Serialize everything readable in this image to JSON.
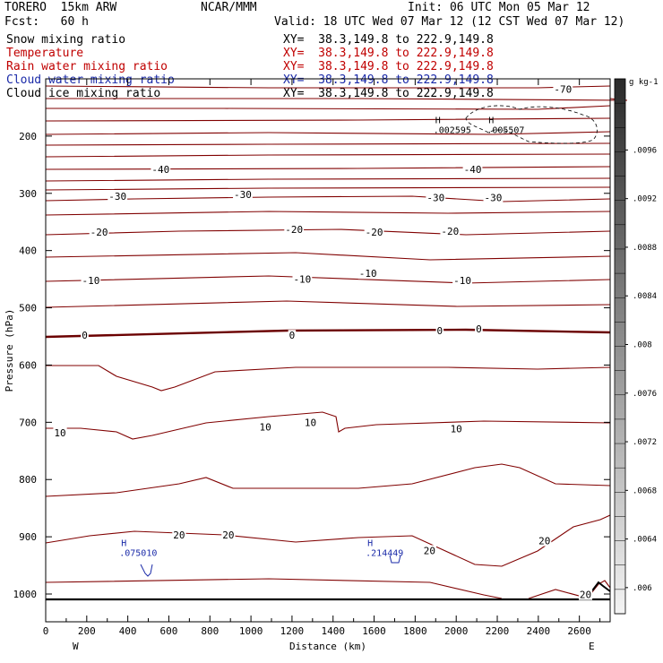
{
  "header": {
    "model": "TORERO  15km ARW",
    "forecast": "Fcst:   60 h",
    "center": "NCAR/MMM",
    "init": "Init: 06 UTC Mon 05 Mar 12",
    "valid": "Valid: 18 UTC Wed 07 Mar 12 (12 CST Wed 07 Mar 12)"
  },
  "fields": [
    {
      "name": "Snow mixing ratio",
      "xy": "",
      "color": "#000000"
    },
    {
      "name": "Temperature",
      "xy": "XY=  38.3,149.8 to 222.9,149.8",
      "color": "#c00000"
    },
    {
      "name": "Rain water mixing ratio",
      "xy": "XY=  38.3,149.8 to 222.9,149.8",
      "color": "#c00000"
    },
    {
      "name": "Cloud water mixing ratio",
      "xy": "XY=  38.3,149.8 to 222.9,149.8",
      "color": "#1a2aa8"
    },
    {
      "name": "Cloud ice mixing ratio",
      "xy": "XY=  38.3,149.8 to 222.9,149.8",
      "color": "#000000"
    }
  ],
  "first_xy": "XY=  38.3,149.8 to 222.9,149.8",
  "chart_data": {
    "type": "line",
    "title": "",
    "xlabel": "Distance (km)",
    "ylabel": "Pressure (hPa)",
    "xlim": [
      0,
      2750
    ],
    "ylim": [
      1050,
      100
    ],
    "x_ticks": [
      0,
      200,
      400,
      600,
      800,
      1000,
      1200,
      1400,
      1600,
      1800,
      2000,
      2200,
      2400,
      2600
    ],
    "y_ticks": [
      200,
      300,
      400,
      500,
      600,
      700,
      800,
      900,
      1000
    ],
    "x_end_labels": {
      "left": "W",
      "right": "E"
    },
    "colorbar": {
      "unit": "g kg-1",
      "labels": [
        ".006",
        ".0064",
        ".0068",
        ".0072",
        ".0076",
        ".008",
        ".0084",
        ".0088",
        ".0092",
        ".0096"
      ]
    },
    "temperature_contour_labels": [
      {
        "text": "-70",
        "x": 2520,
        "p": 118
      },
      {
        "text": "-40",
        "x": 560,
        "p": 258
      },
      {
        "text": "-40",
        "x": 2080,
        "p": 258
      },
      {
        "text": "-30",
        "x": 350,
        "p": 305
      },
      {
        "text": "-30",
        "x": 960,
        "p": 302
      },
      {
        "text": "-30",
        "x": 1900,
        "p": 307
      },
      {
        "text": "-30",
        "x": 2180,
        "p": 307
      },
      {
        "text": "-20",
        "x": 260,
        "p": 368
      },
      {
        "text": "-20",
        "x": 1210,
        "p": 363
      },
      {
        "text": "-20",
        "x": 1600,
        "p": 368
      },
      {
        "text": "-20",
        "x": 1970,
        "p": 366
      },
      {
        "text": "-10",
        "x": 220,
        "p": 452
      },
      {
        "text": "-10",
        "x": 1250,
        "p": 450
      },
      {
        "text": "-10",
        "x": 1570,
        "p": 440
      },
      {
        "text": "-10",
        "x": 2030,
        "p": 452
      },
      {
        "text": "0",
        "x": 190,
        "p": 548
      },
      {
        "text": "0",
        "x": 1200,
        "p": 548
      },
      {
        "text": "0",
        "x": 1920,
        "p": 540
      },
      {
        "text": "0",
        "x": 2110,
        "p": 537
      },
      {
        "text": "10",
        "x": 70,
        "p": 718
      },
      {
        "text": "10",
        "x": 1070,
        "p": 708
      },
      {
        "text": "10",
        "x": 1290,
        "p": 700
      },
      {
        "text": "10",
        "x": 2000,
        "p": 711
      },
      {
        "text": "20",
        "x": 650,
        "p": 897
      },
      {
        "text": "20",
        "x": 890,
        "p": 897
      },
      {
        "text": "20",
        "x": 1870,
        "p": 924
      },
      {
        "text": "20",
        "x": 2430,
        "p": 907
      },
      {
        "text": "20",
        "x": 2630,
        "p": 1001
      }
    ],
    "cloud_maxima": [
      {
        "text": ".002595",
        "x": 1950,
        "p": 193,
        "field": "Cloud ice mixing ratio"
      },
      {
        "text": ".005507",
        "x": 2210,
        "p": 193,
        "field": "Cloud ice mixing ratio"
      },
      {
        "text": ".075010",
        "x": 420,
        "p": 932,
        "field": "Cloud water mixing ratio"
      },
      {
        "text": ".214449",
        "x": 1620,
        "p": 932,
        "field": "Cloud water mixing ratio"
      }
    ],
    "max_marker": "H"
  },
  "colors": {
    "temperature": "#800000",
    "zero_line": "#6b0000",
    "cloud_water": "#1a2aa8",
    "frame": "#000000"
  }
}
